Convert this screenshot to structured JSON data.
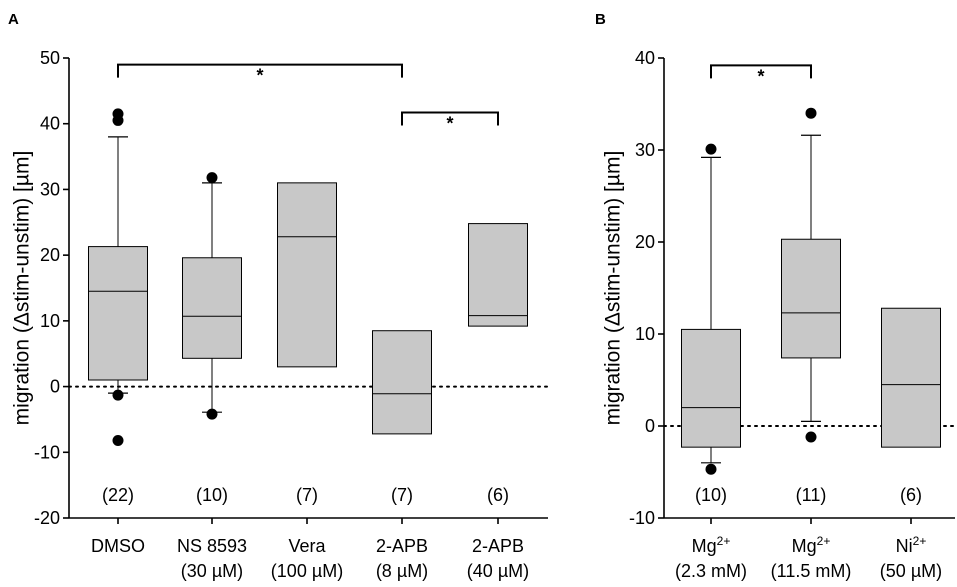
{
  "chart_data": [
    {
      "type": "box",
      "panel": "A",
      "ylabel": "migration (Δstim-unstim) [µm]",
      "ylim": [
        -20,
        50
      ],
      "yticks": [
        -20,
        -10,
        0,
        10,
        20,
        30,
        40,
        50
      ],
      "reference_line": 0,
      "groups": [
        {
          "label1": "DMSO",
          "label2": "",
          "n": "(22)",
          "q1": 1,
          "median": 14.5,
          "q3": 21.3,
          "whisker_low": -1,
          "whisker_high": 38,
          "outliers": [
            41.5,
            40.5,
            -1.3,
            -8.2
          ]
        },
        {
          "label1": "NS 8593",
          "label2": "(30 µM)",
          "n": "(10)",
          "q1": 4.3,
          "median": 10.7,
          "q3": 19.6,
          "whisker_low": -3.9,
          "whisker_high": 31,
          "outliers": [
            31.8,
            -4.2
          ]
        },
        {
          "label1": "Vera",
          "label2": "(100 µM)",
          "n": "(7)",
          "q1": 3,
          "median": 22.8,
          "q3": 31,
          "outliers": []
        },
        {
          "label1": "2-APB",
          "label2": "(8 µM)",
          "n": "(7)",
          "q1": -7.2,
          "median": -1.1,
          "q3": 8.5,
          "outliers": []
        },
        {
          "label1": "2-APB",
          "label2": "(40 µM)",
          "n": "(6)",
          "q1": 9.2,
          "median": 10.8,
          "q3": 24.8,
          "outliers": []
        }
      ],
      "significance": [
        {
          "from": 0,
          "to": 3,
          "y": 49,
          "label": "*"
        },
        {
          "from": 3,
          "to": 4,
          "y": 41.7,
          "label": "*"
        }
      ]
    },
    {
      "type": "box",
      "panel": "B",
      "ylabel": "migration (Δstim-unstim) [µm]",
      "ylim": [
        -10,
        40
      ],
      "yticks": [
        -10,
        0,
        10,
        20,
        30,
        40
      ],
      "reference_line": 0,
      "groups": [
        {
          "label1": "Mg",
          "sup": "2+",
          "label2": "(2.3 mM)",
          "n": "(10)",
          "q1": -2.3,
          "median": 2,
          "q3": 10.5,
          "whisker_low": -4,
          "whisker_high": 29.2,
          "outliers": [
            30.1,
            -4.7
          ]
        },
        {
          "label1": "Mg",
          "sup": "2+",
          "label2": "(11.5 mM)",
          "n": "(11)",
          "q1": 7.4,
          "median": 12.3,
          "q3": 20.3,
          "whisker_low": 0.5,
          "whisker_high": 31.6,
          "outliers": [
            34,
            -1.2
          ]
        },
        {
          "label1": "Ni",
          "sup": "2+",
          "label2": "(50 µM)",
          "n": "(6)",
          "q1": -2.3,
          "median": 4.5,
          "q3": 12.8,
          "outliers": []
        }
      ],
      "significance": [
        {
          "from": 0,
          "to": 1,
          "y": 39.2,
          "label": "*"
        }
      ]
    }
  ]
}
